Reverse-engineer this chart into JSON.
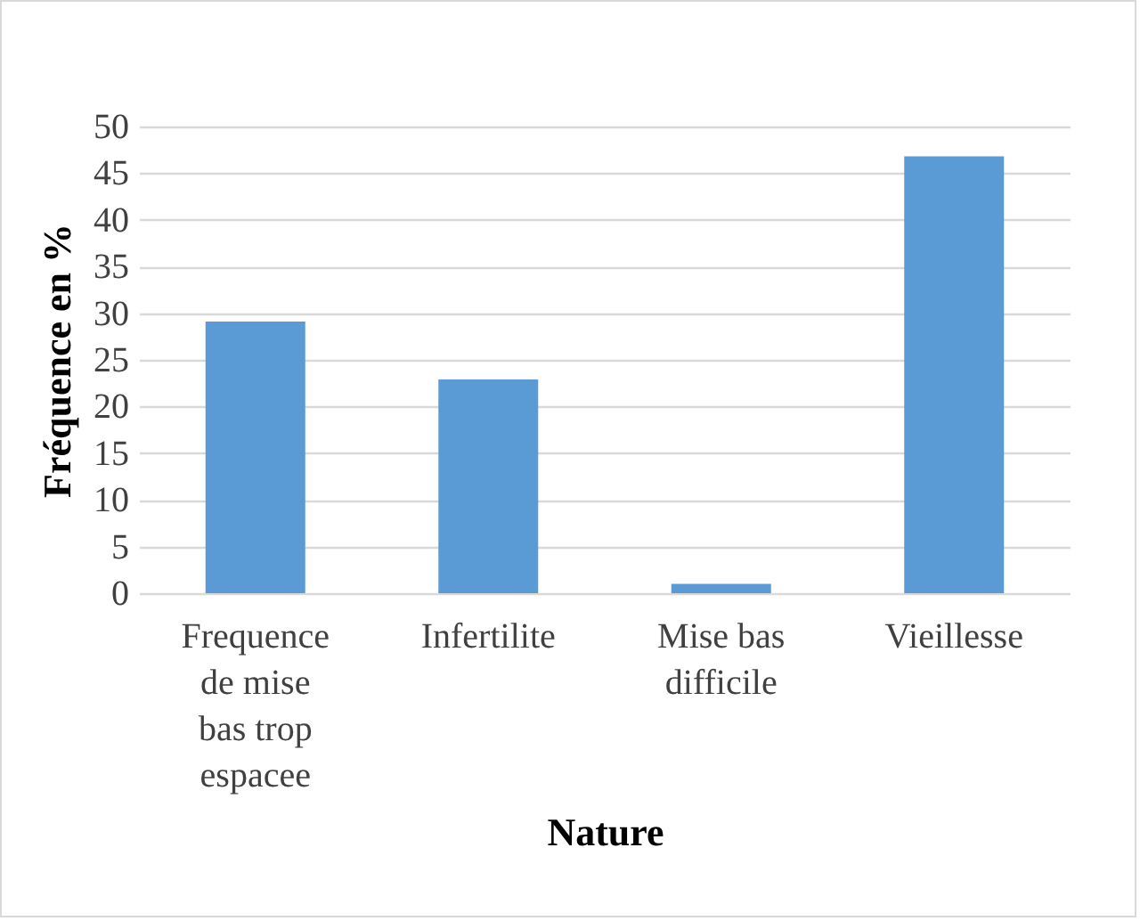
{
  "chart_data": {
    "type": "bar",
    "xlabel": "Nature",
    "ylabel": "Fréquence en %",
    "categories": [
      "Frequence de mise bas trop espacee",
      "Infertilite",
      "Mise bas difficile",
      "Vieillesse"
    ],
    "values": [
      29.1,
      22.9,
      1,
      46.8
    ],
    "color": "#5b9bd5",
    "ylim": [
      0,
      50
    ],
    "yticks": [
      0,
      5,
      10,
      15,
      20,
      25,
      30,
      35,
      40,
      45,
      50
    ],
    "grid": "y"
  }
}
